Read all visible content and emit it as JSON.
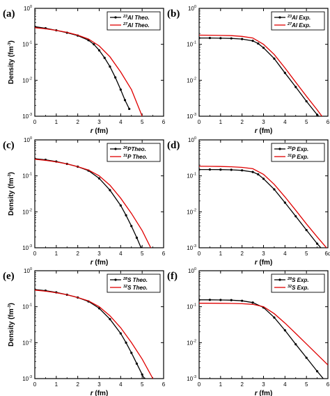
{
  "chart_data": [
    {
      "panel": "(a)",
      "type": "line",
      "xlabel_var": "r",
      "xlabel_unit": " (fm)",
      "ylabel_main": "Density (fm",
      "ylabel_sup": "-3",
      "ylabel_end": ")",
      "xlim": [
        0,
        6
      ],
      "ylim": [
        0.001,
        1
      ],
      "yscale": "log",
      "xticks": [
        "0",
        "1",
        "2",
        "3",
        "4",
        "5",
        "6"
      ],
      "yticks": [
        {
          "base": "10",
          "exp": "-3"
        },
        {
          "base": "10",
          "exp": "-2"
        },
        {
          "base": "10",
          "exp": "-1"
        },
        {
          "base": "10",
          "exp": "0"
        }
      ],
      "legend_position": "top-right",
      "series": [
        {
          "name": "Al Theo.",
          "mass": "23",
          "color": "#000000",
          "markers": true,
          "x": [
            0,
            0.5,
            1,
            1.5,
            2,
            2.5,
            2.75,
            3,
            3.25,
            3.5,
            3.75,
            4,
            4.2,
            4.4
          ],
          "y": [
            0.31,
            0.28,
            0.245,
            0.21,
            0.175,
            0.13,
            0.1,
            0.068,
            0.042,
            0.024,
            0.012,
            0.0055,
            0.0028,
            0.0016
          ]
        },
        {
          "name": "Al Theo.",
          "mass": "27",
          "color": "#e00000",
          "markers": false,
          "x": [
            0,
            0.5,
            1,
            1.5,
            2,
            2.5,
            3,
            3.5,
            4,
            4.5,
            5
          ],
          "y": [
            0.29,
            0.27,
            0.245,
            0.215,
            0.18,
            0.14,
            0.09,
            0.045,
            0.017,
            0.0055,
            0.001
          ]
        }
      ]
    },
    {
      "panel": "(b)",
      "type": "line",
      "xlabel_var": "r",
      "xlabel_unit": " (fm)",
      "xlim": [
        0,
        6
      ],
      "ylim": [
        0.001,
        1
      ],
      "yscale": "log",
      "xticks": [
        "0",
        "1",
        "2",
        "3",
        "4",
        "5",
        "6"
      ],
      "yticks": [
        {
          "base": "10",
          "exp": "-3"
        },
        {
          "base": "10",
          "exp": "-2"
        },
        {
          "base": "10",
          "exp": "-1"
        },
        {
          "base": "10",
          "exp": "0"
        }
      ],
      "legend_position": "top-right",
      "series": [
        {
          "name": "Al Exp.",
          "mass": "23",
          "color": "#000000",
          "markers": true,
          "x": [
            0,
            0.5,
            1,
            1.5,
            2,
            2.5,
            2.75,
            3,
            3.5,
            4,
            4.5,
            5,
            5.5,
            6
          ],
          "y": [
            0.15,
            0.15,
            0.148,
            0.146,
            0.14,
            0.125,
            0.105,
            0.08,
            0.04,
            0.016,
            0.0065,
            0.0026,
            0.0011,
            0.00045
          ]
        },
        {
          "name": "Al Exp.",
          "mass": "27",
          "color": "#e00000",
          "markers": false,
          "x": [
            0,
            0.5,
            1,
            1.5,
            2,
            2.5,
            3,
            3.5,
            4,
            4.5,
            5,
            5.5,
            6
          ],
          "y": [
            0.18,
            0.179,
            0.177,
            0.174,
            0.166,
            0.15,
            0.1,
            0.052,
            0.022,
            0.0088,
            0.0036,
            0.0015,
            0.0006
          ]
        }
      ]
    },
    {
      "panel": "(c)",
      "type": "line",
      "xlabel_var": "r",
      "xlabel_unit": " (fm)",
      "ylabel_main": "Density (fm",
      "ylabel_sup": "-3",
      "ylabel_end": ")",
      "xlim": [
        0,
        6
      ],
      "ylim": [
        0.001,
        1
      ],
      "yscale": "log",
      "xticks": [
        "0",
        "1",
        "2",
        "3",
        "4",
        "5",
        "6"
      ],
      "yticks": [
        {
          "base": "10",
          "exp": "-3"
        },
        {
          "base": "10",
          "exp": "-2"
        },
        {
          "base": "10",
          "exp": "-1"
        },
        {
          "base": "10",
          "exp": "0"
        }
      ],
      "legend_position": "top-right",
      "series": [
        {
          "name": "PTheo.",
          "mass": "26",
          "color": "#000000",
          "markers": true,
          "x": [
            0,
            0.5,
            1,
            1.5,
            2,
            2.5,
            3,
            3.5,
            4,
            4.25,
            4.5,
            4.75,
            4.95
          ],
          "y": [
            0.3,
            0.28,
            0.25,
            0.215,
            0.18,
            0.14,
            0.085,
            0.04,
            0.015,
            0.008,
            0.004,
            0.0019,
            0.001
          ]
        },
        {
          "name": "P Theo.",
          "mass": "31",
          "color": "#e00000",
          "markers": false,
          "x": [
            0,
            0.5,
            1,
            1.5,
            2,
            2.5,
            3,
            3.5,
            4,
            4.5,
            5,
            5.4
          ],
          "y": [
            0.29,
            0.27,
            0.245,
            0.215,
            0.18,
            0.145,
            0.1,
            0.055,
            0.024,
            0.009,
            0.003,
            0.001
          ]
        }
      ]
    },
    {
      "panel": "(d)",
      "type": "line",
      "xlabel_var": "r",
      "xlabel_unit": " (fm)",
      "xlim": [
        0,
        6
      ],
      "ylim": [
        0.001,
        1
      ],
      "yscale": "log",
      "xticks": [
        "0",
        "1",
        "2",
        "3",
        "4",
        "5",
        "6"
      ],
      "xtick_last_override": "6d",
      "yticks": [
        {
          "base": "10",
          "exp": "-3"
        },
        {
          "base": "10",
          "exp": "-2"
        },
        {
          "base": "10",
          "exp": "-1"
        },
        {
          "base": "10",
          "exp": "0"
        }
      ],
      "legend_position": "top-right",
      "series": [
        {
          "name": "P Exp.",
          "mass": "26",
          "color": "#000000",
          "markers": true,
          "x": [
            0,
            0.5,
            1,
            1.5,
            2,
            2.5,
            2.75,
            3,
            3.5,
            4,
            4.5,
            5,
            5.5,
            6
          ],
          "y": [
            0.15,
            0.15,
            0.149,
            0.147,
            0.142,
            0.128,
            0.11,
            0.083,
            0.042,
            0.018,
            0.0075,
            0.0031,
            0.0013,
            0.00058
          ]
        },
        {
          "name": "P Exp.",
          "mass": "31",
          "color": "#e00000",
          "markers": false,
          "x": [
            0,
            0.5,
            1,
            1.5,
            2,
            2.5,
            3,
            3.5,
            4,
            4.5,
            5,
            5.5,
            6
          ],
          "y": [
            0.185,
            0.184,
            0.182,
            0.179,
            0.172,
            0.158,
            0.11,
            0.058,
            0.026,
            0.011,
            0.0046,
            0.002,
            0.0009
          ]
        }
      ]
    },
    {
      "panel": "(e)",
      "type": "line",
      "xlabel_var": "r",
      "xlabel_unit": " (fm)",
      "ylabel_main": "Density (fm",
      "ylabel_sup": "-3",
      "ylabel_end": ")",
      "xlim": [
        0,
        6
      ],
      "ylim": [
        0.001,
        1
      ],
      "yscale": "log",
      "xticks": [
        "0",
        "1",
        "2",
        "3",
        "4",
        "5",
        "6"
      ],
      "yticks": [
        {
          "base": "10",
          "exp": "-3"
        },
        {
          "base": "10",
          "exp": "-2"
        },
        {
          "base": "10",
          "exp": "-1"
        },
        {
          "base": "10",
          "exp": "0"
        }
      ],
      "legend_position": "top-right",
      "series": [
        {
          "name": "S Theo.",
          "mass": "28",
          "color": "#000000",
          "markers": true,
          "x": [
            0,
            0.5,
            1,
            1.5,
            2,
            2.5,
            3,
            3.5,
            4,
            4.25,
            4.5,
            4.75,
            5,
            5.1
          ],
          "y": [
            0.3,
            0.28,
            0.25,
            0.215,
            0.18,
            0.14,
            0.09,
            0.045,
            0.018,
            0.01,
            0.0052,
            0.0026,
            0.0013,
            0.001
          ]
        },
        {
          "name": "S Theo.",
          "mass": "32",
          "color": "#e00000",
          "markers": false,
          "x": [
            0,
            0.5,
            1,
            1.5,
            2,
            2.5,
            3,
            3.5,
            4,
            4.5,
            5,
            5.5
          ],
          "y": [
            0.29,
            0.27,
            0.245,
            0.215,
            0.18,
            0.145,
            0.1,
            0.056,
            0.026,
            0.01,
            0.0035,
            0.001
          ]
        }
      ]
    },
    {
      "panel": "(f)",
      "type": "line",
      "xlabel_var": "r",
      "xlabel_unit": " (fm)",
      "xlim": [
        0,
        6
      ],
      "ylim": [
        0.001,
        1
      ],
      "yscale": "log",
      "xticks": [
        "0",
        "1",
        "2",
        "3",
        "4",
        "5",
        "6"
      ],
      "yticks": [
        {
          "base": "10",
          "exp": "-3"
        },
        {
          "base": "10",
          "exp": "-2"
        },
        {
          "base": "10",
          "exp": "-1"
        },
        {
          "base": "10",
          "exp": "0"
        }
      ],
      "legend_position": "top-right",
      "series": [
        {
          "name": "S Exp.",
          "mass": "28",
          "color": "#000000",
          "markers": true,
          "x": [
            0,
            0.5,
            1,
            1.5,
            2,
            2.5,
            3,
            3.5,
            4,
            4.5,
            5,
            5.5,
            6
          ],
          "y": [
            0.155,
            0.155,
            0.154,
            0.152,
            0.146,
            0.13,
            0.095,
            0.05,
            0.022,
            0.009,
            0.0038,
            0.0016,
            0.0007
          ]
        },
        {
          "name": "S Exp.",
          "mass": "32",
          "color": "#e00000",
          "markers": false,
          "x": [
            0,
            0.5,
            1,
            1.5,
            2,
            2.5,
            3,
            3.5,
            4,
            4.5,
            5,
            5.5,
            6
          ],
          "y": [
            0.125,
            0.125,
            0.124,
            0.123,
            0.121,
            0.116,
            0.1,
            0.064,
            0.035,
            0.018,
            0.0092,
            0.0047,
            0.0024
          ]
        }
      ]
    }
  ]
}
